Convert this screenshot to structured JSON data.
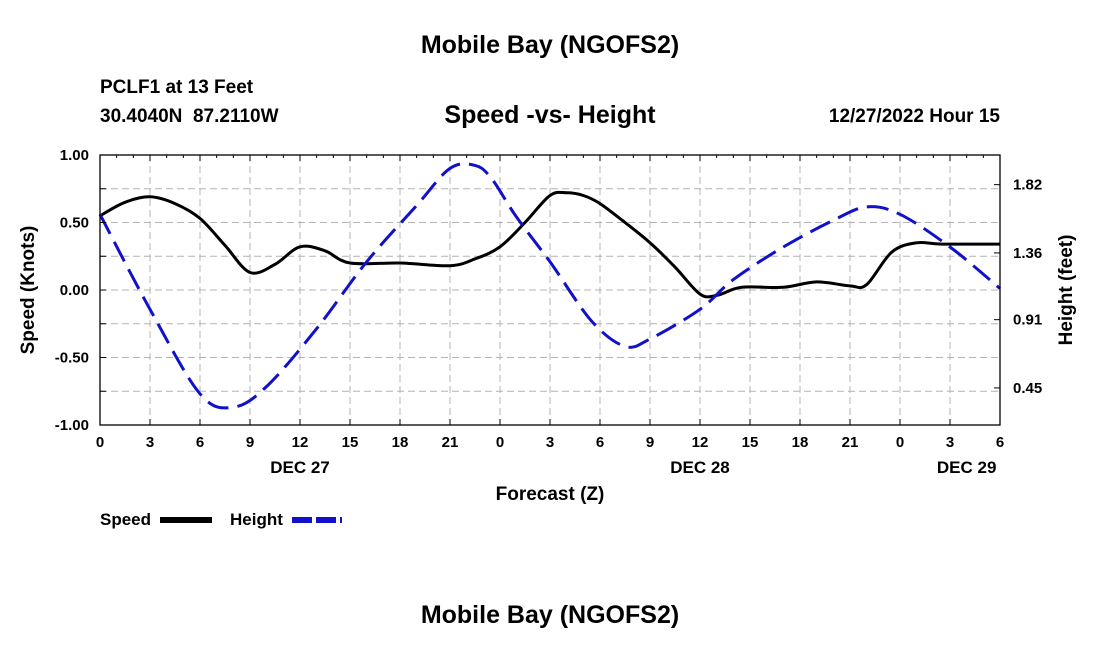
{
  "header": {
    "title": "Mobile Bay (NGOFS2)",
    "station": "PCLF1 at 13 Feet",
    "coords": "30.4040N  87.2110W",
    "subtitle": "Speed -vs- Height",
    "datetime": "12/27/2022 Hour 15"
  },
  "footer": {
    "title": "Mobile Bay (NGOFS2)"
  },
  "legend": {
    "speed_label": "Speed",
    "height_label": "Height"
  },
  "colors": {
    "speed": "#000000",
    "height": "#1111cc",
    "grid": "#b4b4b4"
  },
  "chart_data": {
    "type": "line",
    "xlabel": "Forecast (Z)",
    "ylabel": "Speed (Knots)",
    "y2label": "Height (feet)",
    "grid": true,
    "x_range_hours": [
      0,
      54
    ],
    "x_ticks": [
      "0",
      "3",
      "6",
      "9",
      "12",
      "15",
      "18",
      "21",
      "0",
      "3",
      "6",
      "9",
      "12",
      "15",
      "18",
      "21",
      "0",
      "3",
      "6"
    ],
    "date_labels": [
      {
        "label": "DEC 27",
        "hour": 12
      },
      {
        "label": "DEC 28",
        "hour": 36
      },
      {
        "label": "DEC 29",
        "hour": 52
      }
    ],
    "ylim": [
      -1.0,
      1.0
    ],
    "y_ticks": [
      "1.00",
      "0.50",
      "0.00",
      "-0.50",
      "-1.00"
    ],
    "y2lim": [
      0.2,
      2.02
    ],
    "y2_ticks": [
      "1.82",
      "1.36",
      "0.91",
      "0.45"
    ],
    "series": [
      {
        "name": "Speed",
        "axis": "left",
        "style": "solid",
        "points": [
          [
            0,
            0.55
          ],
          [
            1.5,
            0.65
          ],
          [
            3,
            0.69
          ],
          [
            4.5,
            0.64
          ],
          [
            6,
            0.53
          ],
          [
            7.5,
            0.33
          ],
          [
            9,
            0.13
          ],
          [
            10.5,
            0.19
          ],
          [
            12,
            0.32
          ],
          [
            13.5,
            0.29
          ],
          [
            15,
            0.2
          ],
          [
            18,
            0.2
          ],
          [
            21,
            0.18
          ],
          [
            22.5,
            0.23
          ],
          [
            24,
            0.32
          ],
          [
            25.5,
            0.5
          ],
          [
            27,
            0.7
          ],
          [
            28,
            0.72
          ],
          [
            29,
            0.7
          ],
          [
            30,
            0.64
          ],
          [
            31.5,
            0.5
          ],
          [
            33,
            0.35
          ],
          [
            34.5,
            0.17
          ],
          [
            36,
            -0.03
          ],
          [
            37,
            -0.04
          ],
          [
            38.5,
            0.02
          ],
          [
            41,
            0.02
          ],
          [
            43,
            0.06
          ],
          [
            45,
            0.03
          ],
          [
            46,
            0.04
          ],
          [
            47.5,
            0.28
          ],
          [
            49,
            0.35
          ],
          [
            50.5,
            0.34
          ],
          [
            54,
            0.34
          ]
        ]
      },
      {
        "name": "Height",
        "axis": "right",
        "style": "dashed",
        "points": [
          [
            0,
            1.62
          ],
          [
            3,
            0.98
          ],
          [
            6,
            0.41
          ],
          [
            8,
            0.32
          ],
          [
            10,
            0.46
          ],
          [
            13,
            0.85
          ],
          [
            16,
            1.3
          ],
          [
            19,
            1.68
          ],
          [
            21,
            1.93
          ],
          [
            22.5,
            1.95
          ],
          [
            23.5,
            1.86
          ],
          [
            25,
            1.6
          ],
          [
            27,
            1.3
          ],
          [
            29.5,
            0.9
          ],
          [
            31.5,
            0.73
          ],
          [
            33,
            0.78
          ],
          [
            36,
            0.98
          ],
          [
            38,
            1.18
          ],
          [
            41,
            1.4
          ],
          [
            44,
            1.58
          ],
          [
            46,
            1.67
          ],
          [
            48,
            1.62
          ],
          [
            51,
            1.4
          ],
          [
            54,
            1.12
          ]
        ]
      }
    ]
  }
}
